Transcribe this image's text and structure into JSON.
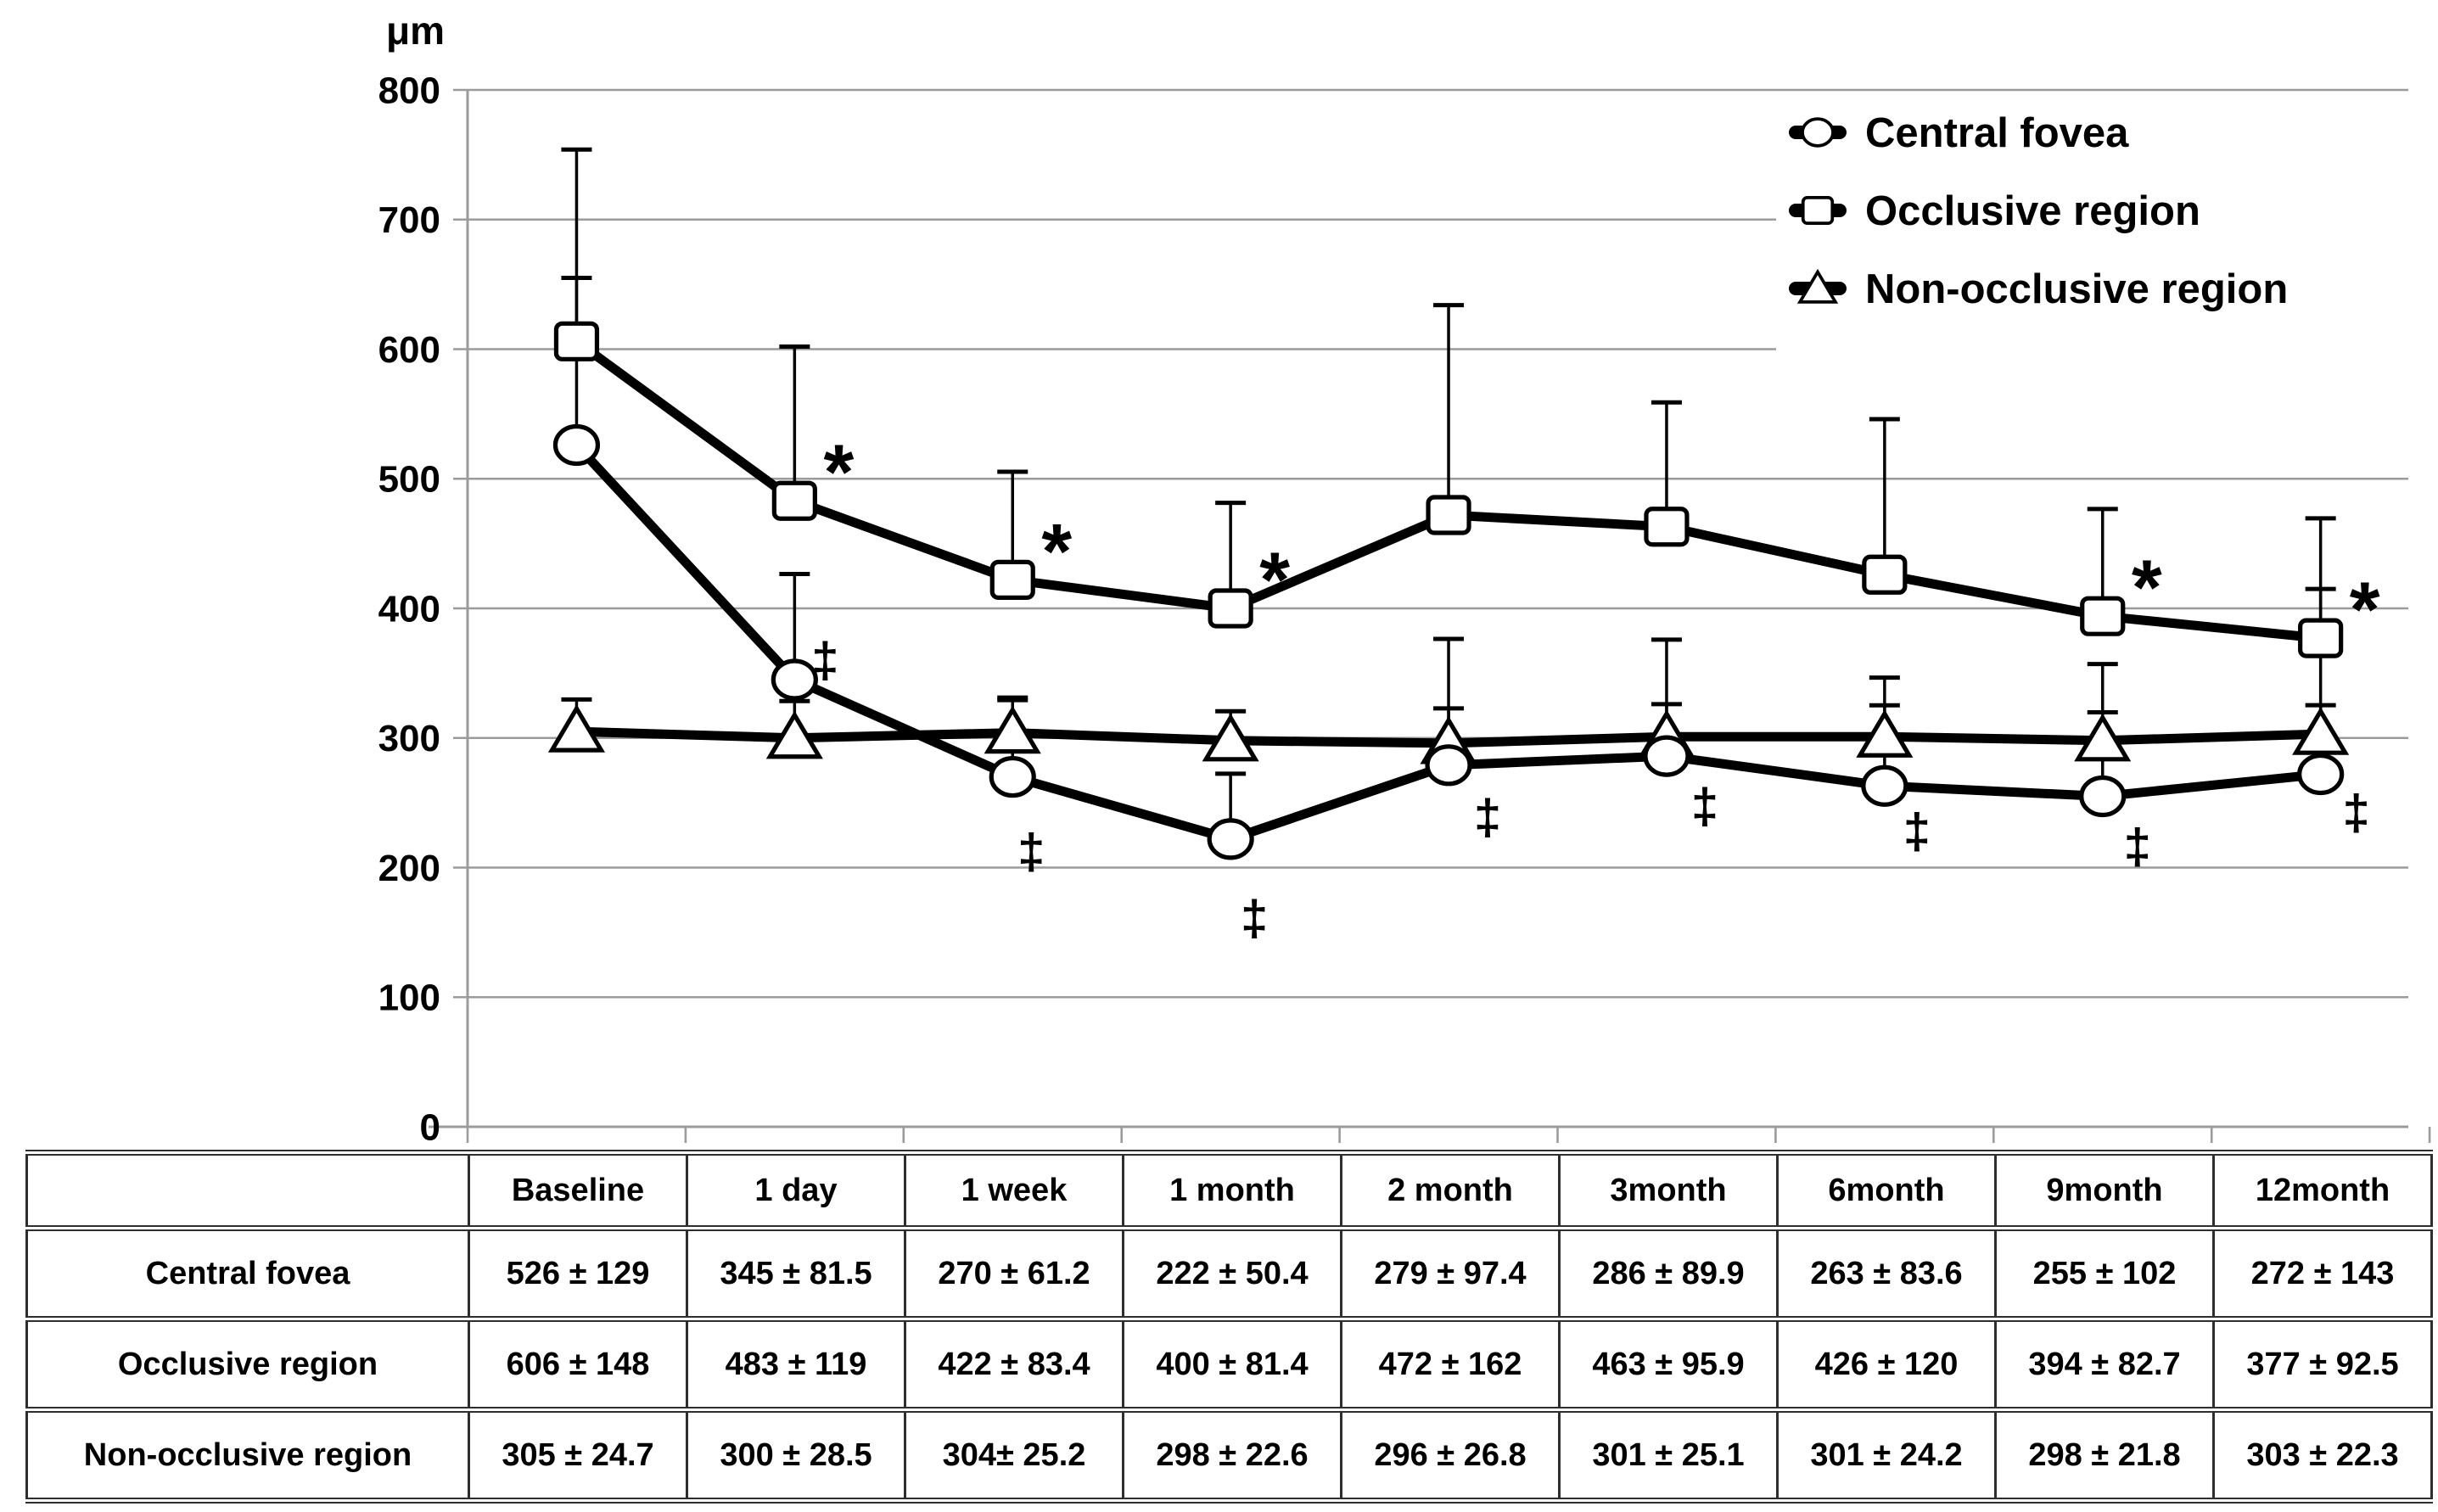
{
  "chart_data": {
    "type": "line",
    "title": "",
    "categories": [
      "Baseline",
      "1 day",
      "1 week",
      "1 month",
      "2 month",
      "3month",
      "6month",
      "9month",
      "12month"
    ],
    "y_axis": {
      "label": "μm",
      "min": 0,
      "max": 800,
      "step": 100,
      "tick_labels": [
        "0",
        "100",
        "200",
        "300",
        "400",
        "500",
        "600",
        "700",
        "800"
      ]
    },
    "grid": true,
    "legend_position": "top-right",
    "error_bars": "upper-sd-only",
    "series": [
      {
        "name": "Central fovea",
        "marker": "circle",
        "values": [
          526,
          345,
          270,
          222,
          279,
          286,
          263,
          255,
          272
        ],
        "sd": [
          129,
          81.5,
          61.2,
          50.4,
          97.4,
          89.9,
          83.6,
          102,
          143
        ],
        "annotations": [
          "",
          "‡",
          "‡",
          "‡",
          "‡",
          "‡",
          "‡",
          "‡",
          "‡"
        ]
      },
      {
        "name": "Occlusive region",
        "marker": "square",
        "values": [
          606,
          483,
          422,
          400,
          472,
          463,
          426,
          394,
          377
        ],
        "sd": [
          148,
          119,
          83.4,
          81.4,
          162,
          95.9,
          120,
          82.7,
          92.5
        ],
        "annotations": [
          "",
          "*",
          "*",
          "*",
          "",
          "",
          "",
          "*",
          "*"
        ]
      },
      {
        "name": "Non-occlusive region",
        "marker": "triangle",
        "values": [
          305,
          300,
          304,
          298,
          296,
          301,
          301,
          298,
          303
        ],
        "sd": [
          24.7,
          28.5,
          25.2,
          22.6,
          26.8,
          25.1,
          24.2,
          21.8,
          22.3
        ],
        "annotations": [
          "",
          "",
          "",
          "",
          "",
          "",
          "",
          "",
          ""
        ]
      }
    ],
    "legend": [
      "Central fovea",
      "Occlusive region",
      "Non-occlusive region"
    ],
    "annotation_symbols": {
      "asterisk": "*",
      "double_dagger": "‡"
    }
  },
  "table": {
    "header": [
      "",
      "Baseline",
      "1 day",
      "1 week",
      "1 month",
      "2 month",
      "3month",
      "6month",
      "9month",
      "12month"
    ],
    "rows": [
      {
        "label": "Central fovea",
        "cells": [
          "526 ± 129",
          "345 ± 81.5",
          "270 ± 61.2",
          "222 ± 50.4",
          "279 ± 97.4",
          "286 ± 89.9",
          "263 ± 83.6",
          "255 ± 102",
          "272 ± 143"
        ]
      },
      {
        "label": "Occlusive region",
        "cells": [
          "606 ± 148",
          "483 ± 119",
          "422 ± 83.4",
          "400 ± 81.4",
          "472 ± 162",
          "463 ± 95.9",
          "426 ± 120",
          "394 ± 82.7",
          "377 ± 92.5"
        ]
      },
      {
        "label": "Non-occlusive region",
        "cells": [
          "305 ± 24.7",
          "300 ± 28.5",
          "304± 25.2",
          "298 ± 22.6",
          "296 ± 26.8",
          "301 ± 25.1",
          "301 ± 24.2",
          "298 ± 21.8",
          "303 ± 22.3"
        ]
      }
    ]
  }
}
